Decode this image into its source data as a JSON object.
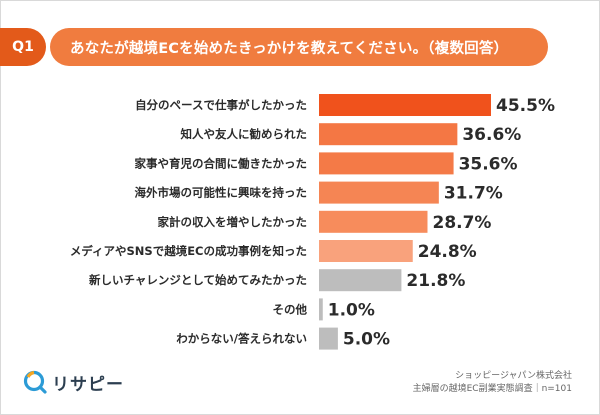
{
  "question": {
    "badge": "Q1",
    "text": "あなたが越境ECを始めたきっかけを教えてください。（複数回答）"
  },
  "chart_data": {
    "type": "bar",
    "orientation": "horizontal",
    "categories": [
      "自分のペースで仕事がしたかった",
      "知人や友人に勧められた",
      "家事や育児の合間に働きたかった",
      "海外市場の可能性に興味を持った",
      "家計の収入を増やしたかった",
      "メディアやSNSで越境ECの成功事例を知った",
      "新しいチャレンジとして始めてみたかった",
      "その他",
      "わからない/答えられない"
    ],
    "values": [
      45.5,
      36.6,
      35.6,
      31.7,
      28.7,
      24.8,
      21.8,
      1.0,
      5.0
    ],
    "value_labels": [
      "45.5%",
      "36.6%",
      "35.6%",
      "31.7%",
      "28.7%",
      "24.8%",
      "21.8%",
      "1.0%",
      "5.0%"
    ],
    "xlim": [
      0,
      45.5
    ],
    "colors": [
      "#f0521c",
      "#f47744",
      "#f47a47",
      "#f58554",
      "#f78c5c",
      "#f9a27c",
      "#bdbdbd",
      "#bdbdbd",
      "#bdbdbd"
    ],
    "grid": false
  },
  "footer": {
    "company": "ショッピージャパン株式会社",
    "survey": "主婦層の越境EC副業実態調査｜n=101",
    "logo_text": "リサピー"
  }
}
